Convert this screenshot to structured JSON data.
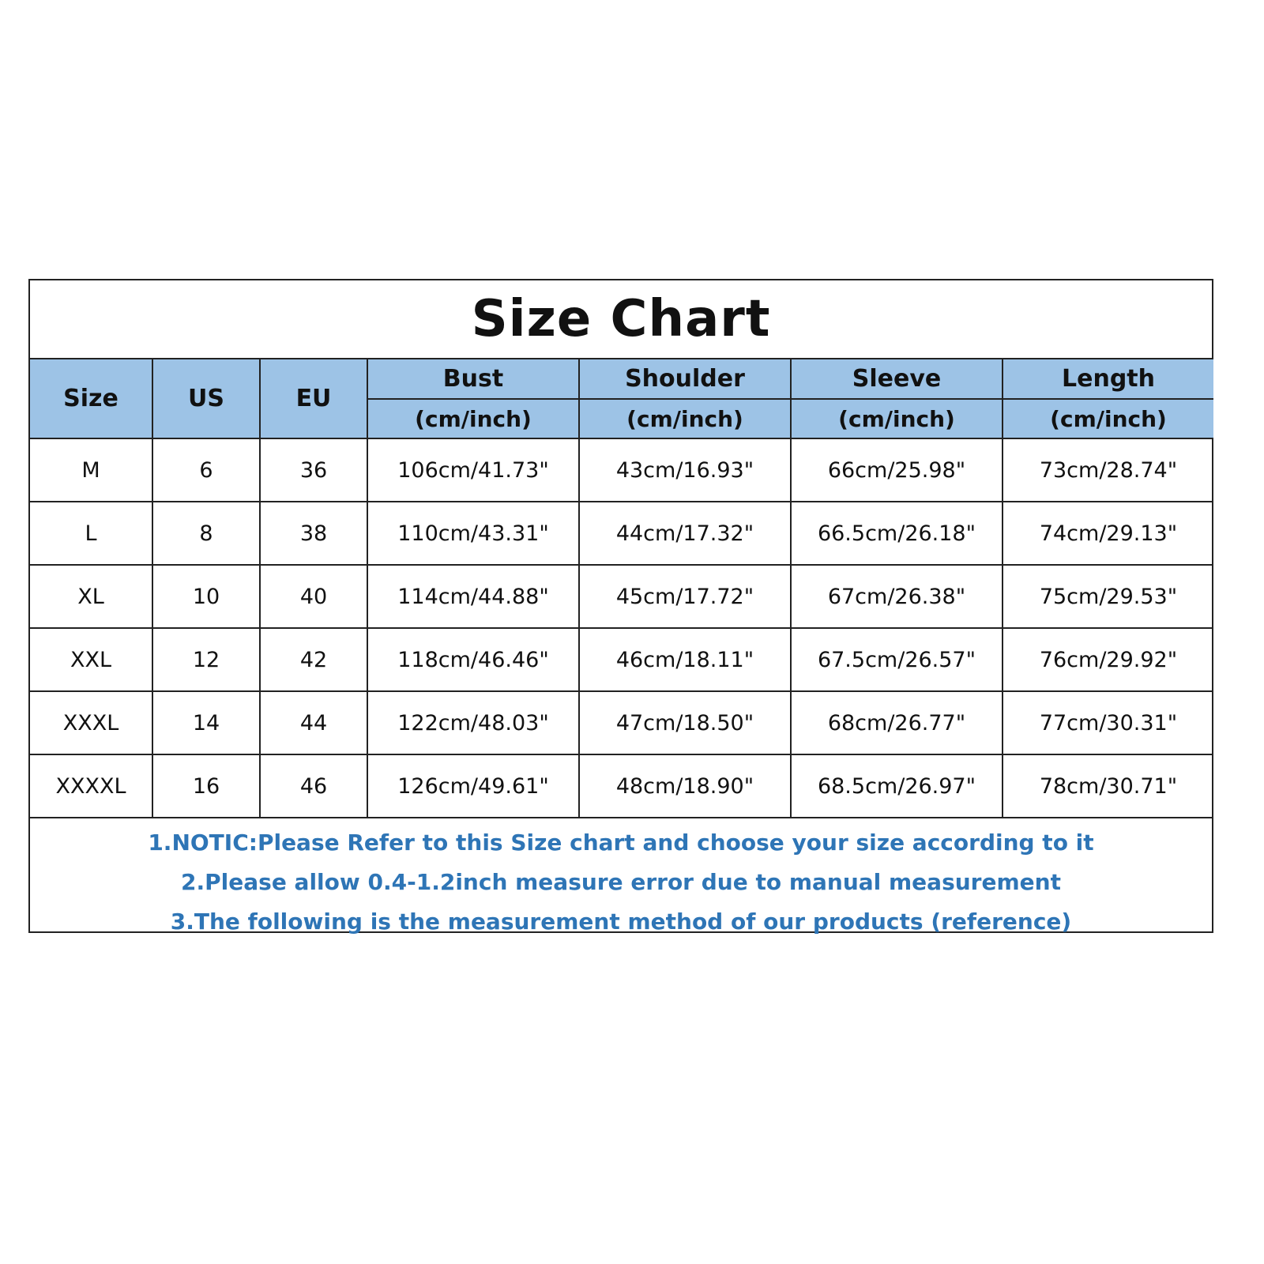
{
  "title": "Size Chart",
  "headers": {
    "size": "Size",
    "us": "US",
    "eu": "EU",
    "measures": [
      {
        "name": "Bust",
        "unit": "(cm/inch)"
      },
      {
        "name": "Shoulder",
        "unit": "(cm/inch)"
      },
      {
        "name": "Sleeve",
        "unit": "(cm/inch)"
      },
      {
        "name": "Length",
        "unit": "(cm/inch)"
      }
    ]
  },
  "rows": [
    [
      "M",
      "6",
      "36",
      "106cm/41.73\"",
      "43cm/16.93\"",
      "66cm/25.98\"",
      "73cm/28.74\""
    ],
    [
      "L",
      "8",
      "38",
      "110cm/43.31\"",
      "44cm/17.32\"",
      "66.5cm/26.18\"",
      "74cm/29.13\""
    ],
    [
      "XL",
      "10",
      "40",
      "114cm/44.88\"",
      "45cm/17.72\"",
      "67cm/26.38\"",
      "75cm/29.53\""
    ],
    [
      "XXL",
      "12",
      "42",
      "118cm/46.46\"",
      "46cm/18.11\"",
      "67.5cm/26.57\"",
      "76cm/29.92\""
    ],
    [
      "XXXL",
      "14",
      "44",
      "122cm/48.03\"",
      "47cm/18.50\"",
      "68cm/26.77\"",
      "77cm/30.31\""
    ],
    [
      "XXXXL",
      "16",
      "46",
      "126cm/49.61\"",
      "48cm/18.90\"",
      "68.5cm/26.97\"",
      "78cm/30.71\""
    ]
  ],
  "notes": [
    "1.NOTIC:Please Refer to this Size chart and choose your size according to it",
    "2.Please allow 0.4-1.2inch measure error due to manual measurement",
    "3.The following is the measurement method of our products (reference)"
  ],
  "colors": {
    "header_bg": "#9dc3e6",
    "notes_text": "#2e75b6"
  }
}
